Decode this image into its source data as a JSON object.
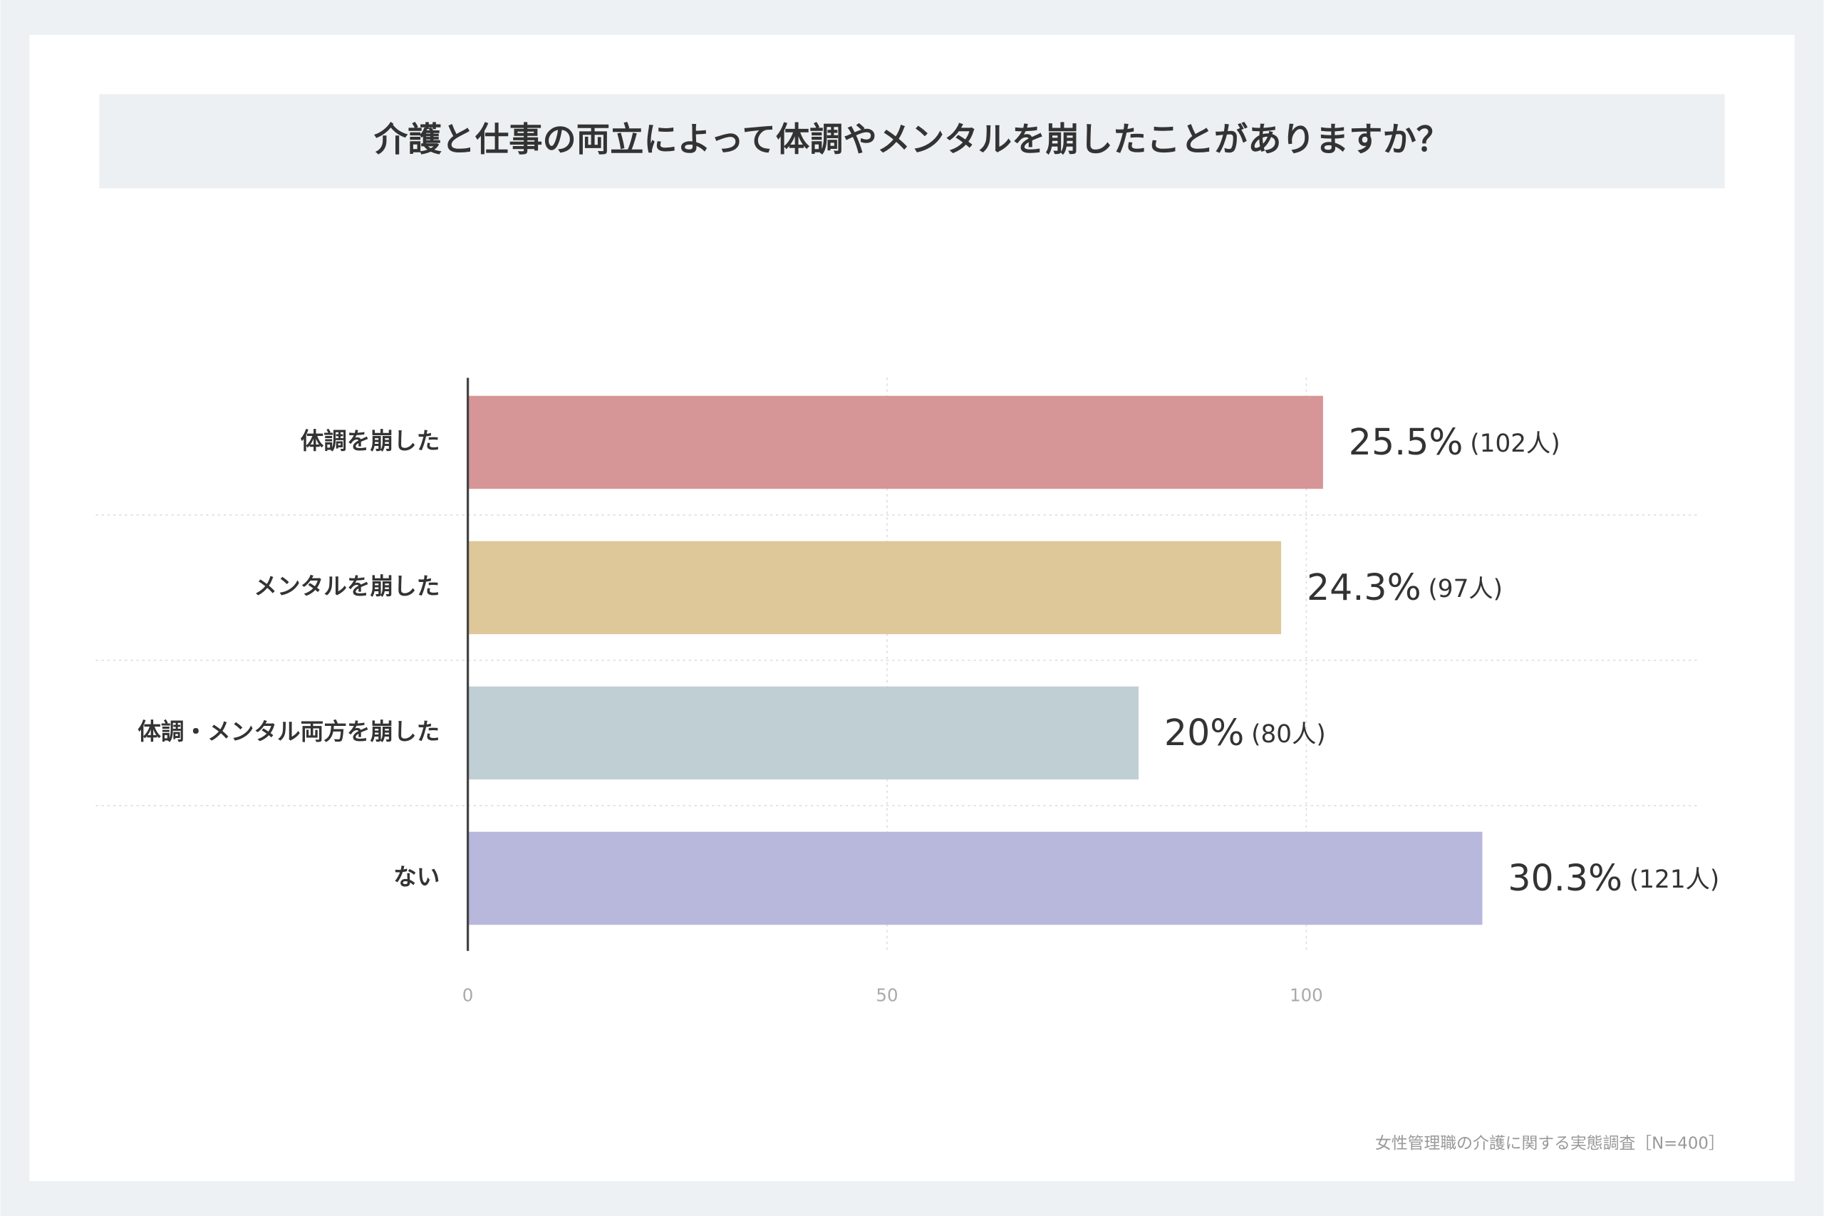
{
  "chart_data": {
    "type": "bar",
    "orientation": "horizontal",
    "title": "介護と仕事の両立によって体調やメンタルを崩したことがありますか？",
    "categories": [
      "体調を崩した",
      "メンタルを崩した",
      "体調・メンタル両方を崩した",
      "ない"
    ],
    "values": [
      102,
      97,
      80,
      121
    ],
    "value_labels": [
      "(102人)",
      "(97人)",
      "(80人)",
      "(121人)"
    ],
    "percentage_labels": [
      "25.5%",
      "24.3%",
      "20%",
      "30.3%"
    ],
    "colors": [
      "#d69596",
      "#dec799",
      "#c0cfd3",
      "#b8b7dc"
    ],
    "xlim": [
      0,
      147
    ],
    "xticks": [
      0,
      50,
      100
    ],
    "grid": true,
    "source": "女性管理職の介護に関する実態調査［N=400］"
  }
}
